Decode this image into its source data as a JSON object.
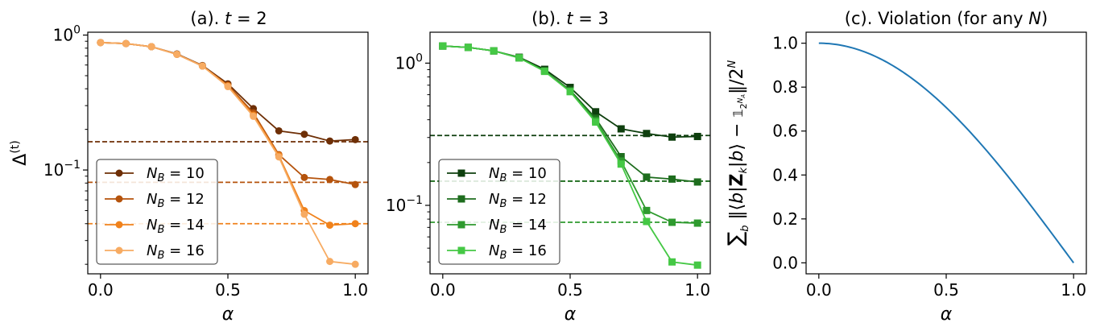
{
  "chart_data": [
    {
      "type": "line",
      "title": "(a). t = 2",
      "title_prefix": "(a).",
      "title_var": "t",
      "title_eq": "= 2",
      "xlabel": "α",
      "ylabel_base": "Δ",
      "ylabel_sup": "(t)",
      "xlim": [
        -0.05,
        1.05
      ],
      "yscale": "log",
      "ylim": [
        0.017,
        1.05
      ],
      "xticks": [
        0.0,
        0.5,
        1.0
      ],
      "xtick_labels": [
        "0.0",
        "0.5",
        "1.0"
      ],
      "yticks": [
        {
          "value": 1,
          "base": "10",
          "exp": "0"
        },
        {
          "value": 0.1,
          "base": "10",
          "exp": "−1"
        }
      ],
      "marker": "circle",
      "legend_position": "lower-left",
      "x": [
        0.0,
        0.1,
        0.2,
        0.3,
        0.4,
        0.5,
        0.6,
        0.7,
        0.8,
        0.9,
        1.0
      ],
      "series": [
        {
          "name": "N_B = 10",
          "label_var": "N",
          "label_sub": "B",
          "label_eq": " = 10",
          "color": "#6e2f06",
          "values": [
            0.88,
            0.865,
            0.82,
            0.725,
            0.595,
            0.435,
            0.285,
            0.195,
            0.184,
            0.164,
            0.168
          ],
          "baseline": 0.162
        },
        {
          "name": "N_B = 12",
          "label_var": "N",
          "label_sub": "B",
          "label_eq": " = 12",
          "color": "#b5530c",
          "values": [
            0.88,
            0.865,
            0.82,
            0.72,
            0.59,
            0.425,
            0.265,
            0.13,
            0.088,
            0.085,
            0.078
          ],
          "baseline": 0.081
        },
        {
          "name": "N_B = 14",
          "label_var": "N",
          "label_sub": "B",
          "label_eq": " = 14",
          "color": "#f0821c",
          "values": [
            0.88,
            0.865,
            0.82,
            0.72,
            0.59,
            0.42,
            0.255,
            0.128,
            0.05,
            0.039,
            0.04
          ],
          "baseline": 0.04
        },
        {
          "name": "N_B = 16",
          "label_var": "N",
          "label_sub": "B",
          "label_eq": " = 16",
          "color": "#f7ab62",
          "values": [
            0.88,
            0.865,
            0.82,
            0.72,
            0.59,
            0.415,
            0.25,
            0.125,
            0.047,
            0.021,
            0.02
          ],
          "baseline": null
        }
      ]
    },
    {
      "type": "line",
      "title": "(b). t = 3",
      "title_prefix": "(b).",
      "title_var": "t",
      "title_eq": "= 3",
      "xlabel": "α",
      "xlim": [
        -0.05,
        1.05
      ],
      "yscale": "log",
      "ylim": [
        0.033,
        1.65
      ],
      "xticks": [
        0.0,
        0.5,
        1.0
      ],
      "xtick_labels": [
        "0.0",
        "0.5",
        "1.0"
      ],
      "yticks": [
        {
          "value": 1,
          "base": "10",
          "exp": "0"
        },
        {
          "value": 0.1,
          "base": "10",
          "exp": "−1"
        }
      ],
      "marker": "square",
      "legend_position": "lower-left",
      "x": [
        0.0,
        0.1,
        0.2,
        0.3,
        0.4,
        0.5,
        0.6,
        0.7,
        0.8,
        0.9,
        1.0
      ],
      "series": [
        {
          "name": "N_B = 10",
          "label_var": "N",
          "label_sub": "B",
          "label_eq": " = 10",
          "color": "#0e3f0e",
          "values": [
            1.32,
            1.29,
            1.22,
            1.1,
            0.905,
            0.675,
            0.455,
            0.345,
            0.32,
            0.302,
            0.305
          ],
          "baseline": 0.31
        },
        {
          "name": "N_B = 12",
          "label_var": "N",
          "label_sub": "B",
          "label_eq": " = 12",
          "color": "#1e6d1e",
          "values": [
            1.32,
            1.29,
            1.22,
            1.09,
            0.885,
            0.645,
            0.41,
            0.22,
            0.158,
            0.153,
            0.146
          ],
          "baseline": 0.148
        },
        {
          "name": "N_B = 14",
          "label_var": "N",
          "label_sub": "B",
          "label_eq": " = 14",
          "color": "#2e9a2e",
          "values": [
            1.32,
            1.29,
            1.22,
            1.09,
            0.88,
            0.635,
            0.395,
            0.205,
            0.092,
            0.076,
            0.075
          ],
          "baseline": 0.076
        },
        {
          "name": "N_B = 16",
          "label_var": "N",
          "label_sub": "B",
          "label_eq": " = 16",
          "color": "#45c845",
          "values": [
            1.32,
            1.29,
            1.22,
            1.09,
            0.875,
            0.63,
            0.385,
            0.195,
            0.077,
            0.04,
            0.038
          ],
          "baseline": null
        }
      ]
    },
    {
      "type": "line",
      "title": "(c). Violation (for any N)",
      "title_main": "(c). Violation (for any ",
      "title_var": "N",
      "title_end": ")",
      "xlabel": "α",
      "ylabel": "∑_b ‖⟨b|Z_k|b⟩ − 𝟙_{2^{N_A}}‖/2^N",
      "xlim": [
        -0.05,
        1.05
      ],
      "ylim": [
        -0.05,
        1.05
      ],
      "xticks": [
        0.0,
        0.5,
        1.0
      ],
      "xtick_labels": [
        "0.0",
        "0.5",
        "1.0"
      ],
      "yticks": [
        0.0,
        0.2,
        0.4,
        0.6,
        0.8,
        1.0
      ],
      "ytick_labels": [
        "0.0",
        "0.2",
        "0.4",
        "0.6",
        "0.8",
        "1.0"
      ],
      "color": "#1f77b4",
      "function": "cos(pi*x/2)",
      "x": [
        0.0,
        0.1,
        0.2,
        0.3,
        0.4,
        0.5,
        0.6,
        0.7,
        0.8,
        0.9,
        1.0
      ],
      "values": [
        1.0,
        0.988,
        0.951,
        0.891,
        0.809,
        0.707,
        0.588,
        0.454,
        0.309,
        0.156,
        0.0
      ]
    }
  ]
}
